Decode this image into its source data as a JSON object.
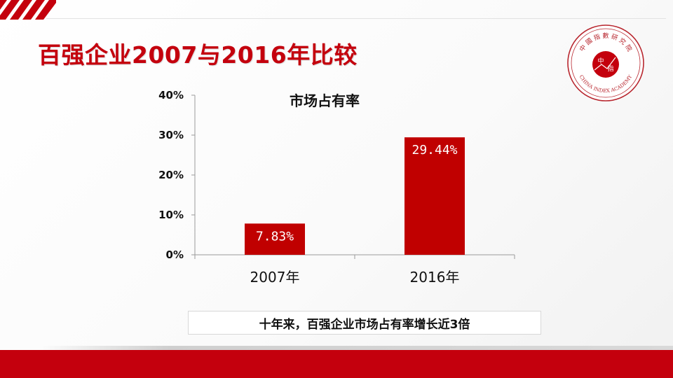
{
  "slide": {
    "title": "百强企业2007与2016年比较",
    "caption": "十年来，百强企业市场占有率增长近3倍"
  },
  "logo": {
    "chars": [
      "中",
      "國",
      "指",
      "數",
      "研",
      "究",
      "院"
    ],
    "center": [
      "中",
      "指"
    ],
    "english": "CHINA INDEX ACADEMY"
  },
  "colors": {
    "accent": "#c4000d",
    "bar": "#c00000",
    "text": "#111111"
  },
  "chart_data": {
    "type": "bar",
    "title": "市场占有率",
    "categories": [
      "2007年",
      "2016年"
    ],
    "values": [
      7.83,
      29.44
    ],
    "data_labels": [
      "7.83%",
      "29.44%"
    ],
    "yticks": [
      "0%",
      "10%",
      "20%",
      "30%",
      "40%"
    ],
    "ylim": [
      0,
      40
    ],
    "xlabel": "",
    "ylabel": "",
    "grid": false,
    "legend": "none"
  }
}
